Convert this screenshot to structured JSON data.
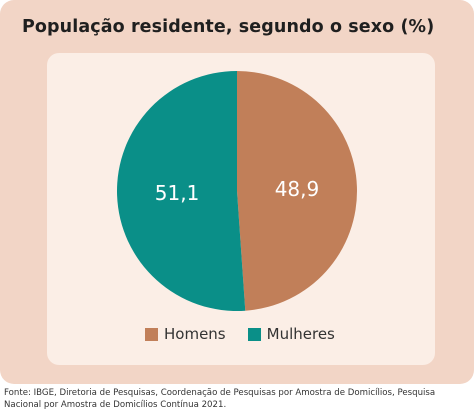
{
  "title": "População residente, segundo o sexo (%)",
  "chart_data": {
    "type": "pie",
    "categories": [
      "Homens",
      "Mulheres"
    ],
    "values": [
      48.9,
      51.1
    ],
    "value_labels": [
      "48,9",
      "51,1"
    ],
    "colors": [
      "#c17f59",
      "#0a8f88"
    ],
    "start": "12 o'clock, clockwise",
    "legend": "bottom-center"
  },
  "legend": {
    "items": [
      {
        "label": "Homens",
        "color": "#c17f59"
      },
      {
        "label": "Mulheres",
        "color": "#0a8f88"
      }
    ]
  },
  "source": "Fonte: IBGE, Diretoria de Pesquisas, Coordenação de Pesquisas por Amostra de Domicílios, Pesquisa Nacional por Amostra de Domicílios Contínua 2021."
}
